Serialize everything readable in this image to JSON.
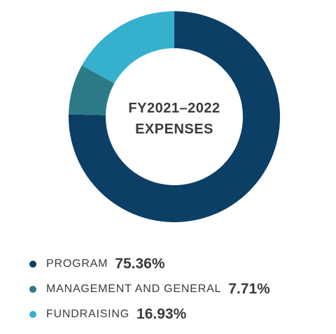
{
  "chart_data": {
    "type": "pie",
    "title": "FY2021–2022 EXPENSES",
    "title_lines": [
      "FY2021–2022",
      "EXPENSES"
    ],
    "donut": true,
    "legend_position": "bottom",
    "slices": [
      {
        "label": "PROGRAM",
        "value": 75.36,
        "value_label": "75.36%",
        "color": "#0c3f66"
      },
      {
        "label": "MANAGEMENT AND GENERAL",
        "value": 7.71,
        "value_label": "7.71%",
        "color": "#2c7a87"
      },
      {
        "label": "FUNDRAISING",
        "value": 16.93,
        "value_label": "16.93%",
        "color": "#35b0cd"
      }
    ]
  }
}
